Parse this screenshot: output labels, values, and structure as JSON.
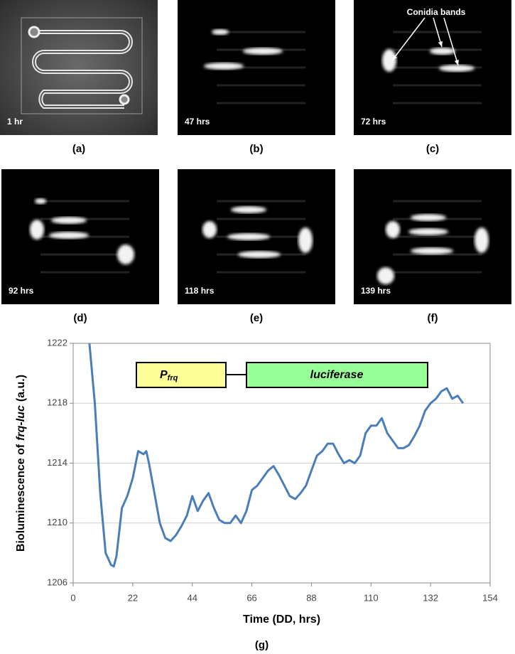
{
  "panels": [
    {
      "label": "(a)",
      "time": "1 hr"
    },
    {
      "label": "(b)",
      "time": "47 hrs"
    },
    {
      "label": "(c)",
      "time": "72 hrs"
    },
    {
      "label": "(d)",
      "time": "92 hrs"
    },
    {
      "label": "(e)",
      "time": "118 hrs"
    },
    {
      "label": "(f)",
      "time": "139 hrs"
    }
  ],
  "annotation": "Conidia bands",
  "chart_data": {
    "type": "line",
    "caption": "(g)",
    "x_label": "Time (DD, hrs)",
    "y_label": [
      "Bioluminescence of",
      "frq-luc",
      "(a.u.)"
    ],
    "inset": {
      "promoter": "P",
      "promoter_sub": "frq",
      "gene": "luciferase"
    },
    "xlim": [
      0,
      154
    ],
    "xticks": [
      0,
      22,
      44,
      66,
      88,
      110,
      132,
      154
    ],
    "ylim": [
      1206,
      1222
    ],
    "yticks": [
      1206,
      1210,
      1214,
      1218,
      1222
    ],
    "grid": true,
    "x": [
      6,
      8,
      10,
      12,
      14,
      15,
      16,
      18,
      20,
      22,
      24,
      26,
      27,
      28,
      30,
      32,
      34,
      36,
      38,
      40,
      42,
      44,
      46,
      48,
      50,
      52,
      54,
      56,
      58,
      60,
      62,
      64,
      66,
      68,
      70,
      72,
      74,
      76,
      78,
      80,
      82,
      84,
      86,
      88,
      90,
      92,
      94,
      96,
      98,
      100,
      102,
      104,
      106,
      108,
      110,
      112,
      114,
      116,
      118,
      120,
      122,
      124,
      126,
      128,
      130,
      132,
      134,
      136,
      138,
      140,
      142,
      144
    ],
    "series": [
      {
        "color": "#4a7ebb",
        "values": [
          1222,
          1218,
          1212,
          1208,
          1207.2,
          1207.1,
          1207.8,
          1211,
          1211.8,
          1213,
          1214.8,
          1214.6,
          1214.8,
          1214,
          1212,
          1210,
          1209,
          1208.8,
          1209.2,
          1209.8,
          1210.5,
          1211.8,
          1210.8,
          1211.5,
          1212,
          1211,
          1210.2,
          1210,
          1210,
          1210.5,
          1210,
          1210.8,
          1212.2,
          1212.5,
          1213,
          1213.5,
          1213.8,
          1213.2,
          1212.5,
          1211.8,
          1211.6,
          1212,
          1212.5,
          1213.5,
          1214.5,
          1214.8,
          1215.3,
          1215.3,
          1214.6,
          1214,
          1214.2,
          1214,
          1214.5,
          1216,
          1216.5,
          1216.5,
          1217,
          1216,
          1215.5,
          1215,
          1215,
          1215.2,
          1215.8,
          1216.5,
          1217.5,
          1218,
          1218.3,
          1218.8,
          1219,
          1218.3,
          1218.5,
          1218
        ]
      }
    ]
  }
}
